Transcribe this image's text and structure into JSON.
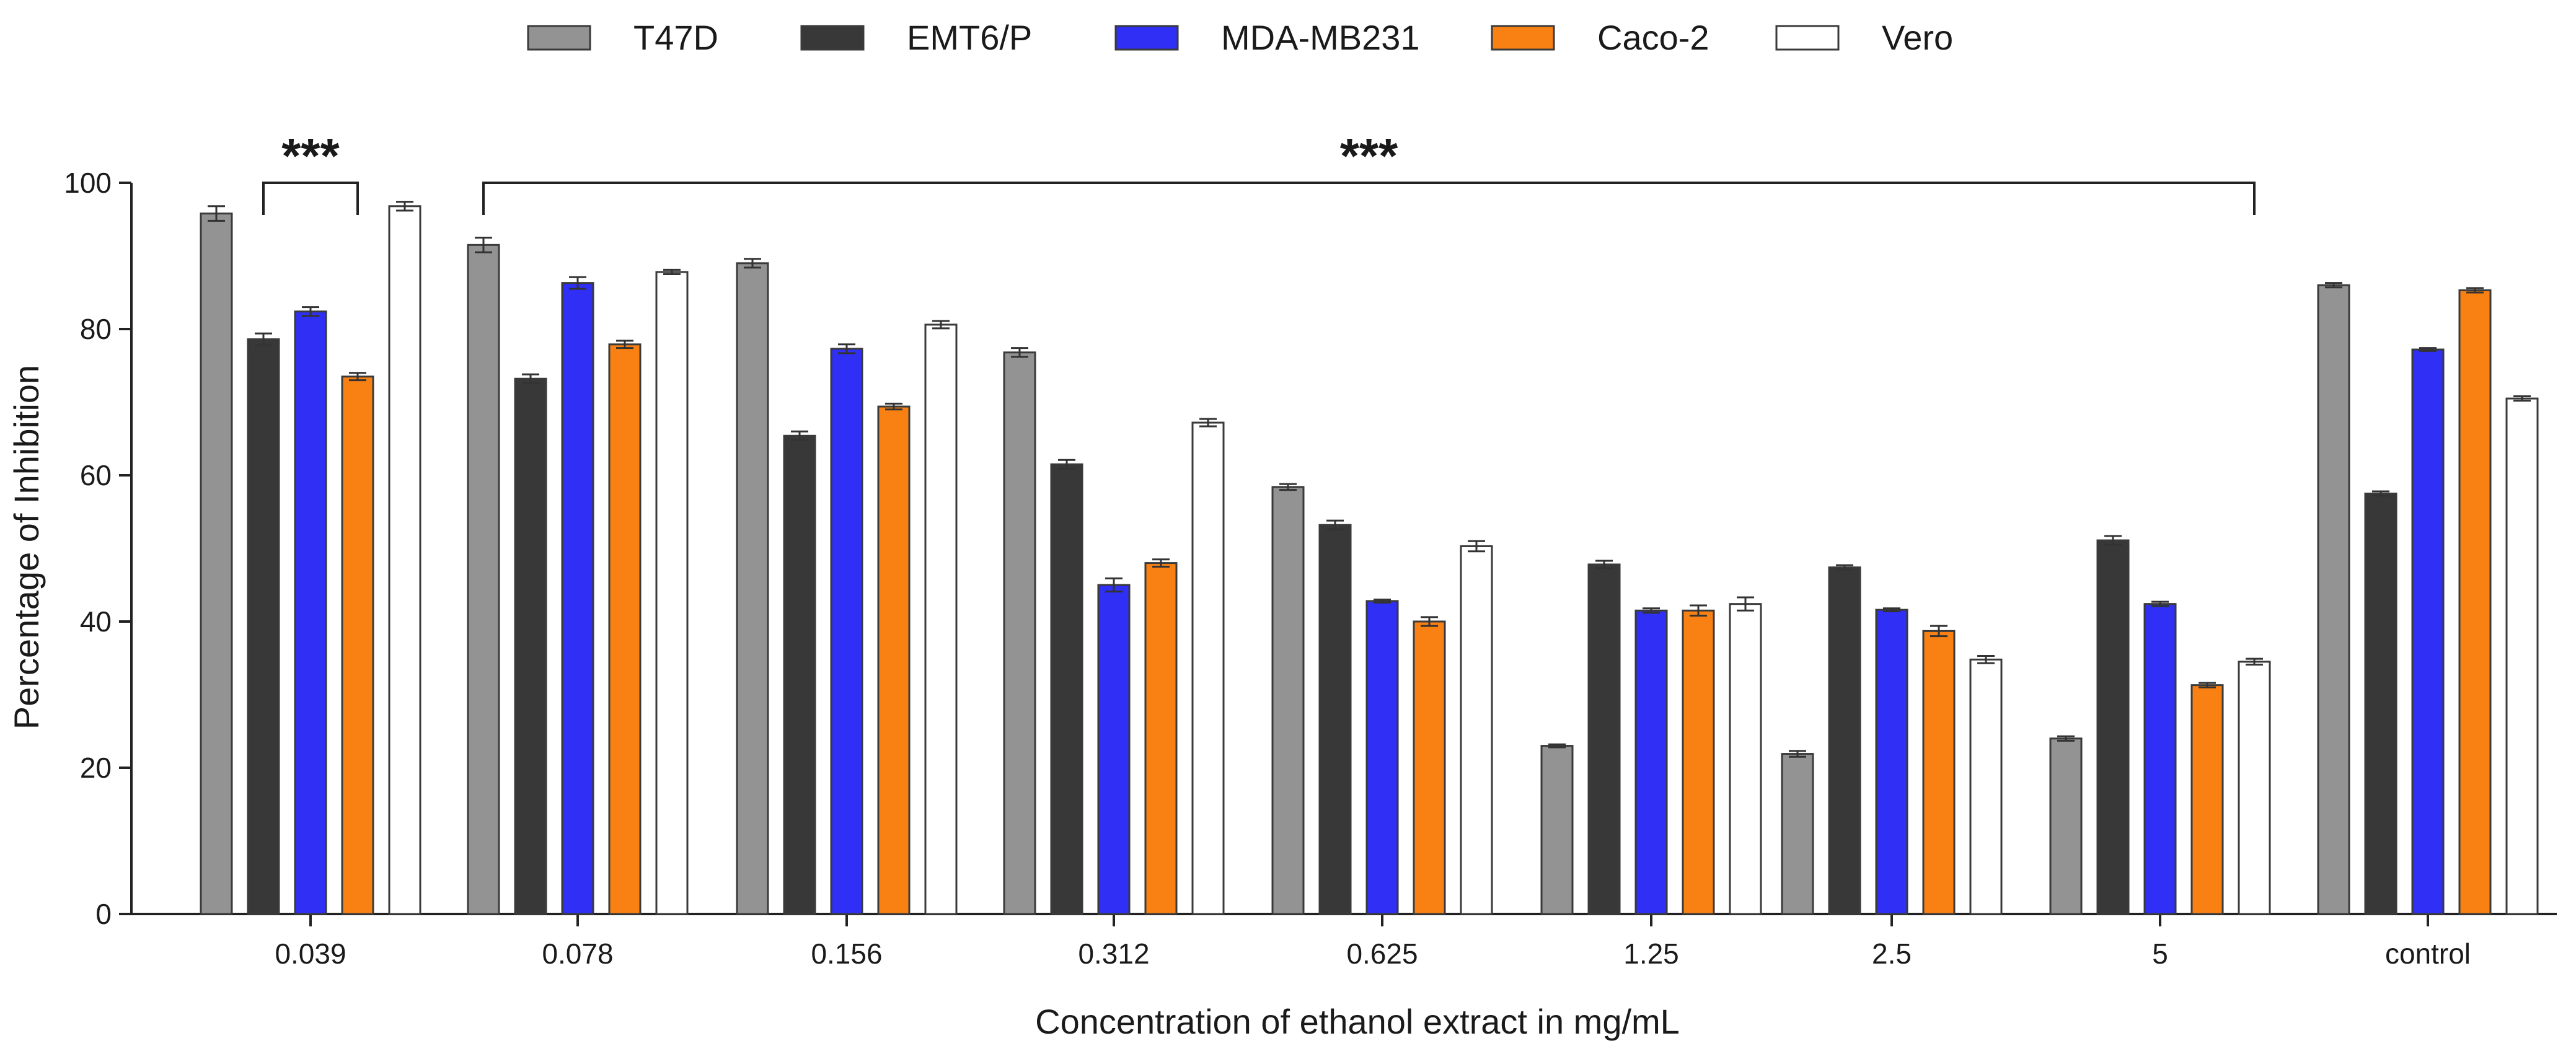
{
  "chart_data": {
    "type": "bar",
    "title": "",
    "xlabel": "Concentration of ethanol extract in mg/mL",
    "ylabel": "Percentage of Inhibition",
    "ylim": [
      0,
      100
    ],
    "yticks": [
      0,
      20,
      40,
      60,
      80,
      100
    ],
    "yticklabels": [
      "0",
      "20",
      "40",
      "60",
      "80",
      "100"
    ],
    "grid": false,
    "legend_position": "top",
    "categories": [
      "0.039",
      "0.078",
      "0.156",
      "0.312",
      "0.625",
      "1.25",
      "2.5",
      "5",
      "control"
    ],
    "series": [
      {
        "name": "T47D",
        "color": "#939393",
        "values": [
          95.8,
          91.5,
          89.0,
          76.8,
          58.4,
          23.0,
          21.9,
          24.0,
          86.0
        ],
        "errors": [
          1.0,
          1.0,
          0.6,
          0.6,
          0.4,
          0.2,
          0.4,
          0.3,
          0.3
        ]
      },
      {
        "name": "EMT6/P",
        "color": "#383838",
        "values": [
          78.6,
          73.2,
          65.4,
          61.5,
          53.2,
          47.8,
          47.4,
          51.1,
          57.5
        ],
        "errors": [
          0.8,
          0.6,
          0.6,
          0.6,
          0.6,
          0.5,
          0.3,
          0.6,
          0.3
        ]
      },
      {
        "name": "MDA-MB231",
        "color": "#2f2ff5",
        "values": [
          82.4,
          86.3,
          77.3,
          45.0,
          42.8,
          41.5,
          41.6,
          42.4,
          77.2
        ],
        "errors": [
          0.6,
          0.8,
          0.6,
          0.9,
          0.2,
          0.3,
          0.2,
          0.3,
          0.2
        ]
      },
      {
        "name": "Caco-2",
        "color": "#f98114",
        "values": [
          73.5,
          77.9,
          69.4,
          48.0,
          40.0,
          41.5,
          38.7,
          31.3,
          85.3
        ],
        "errors": [
          0.5,
          0.5,
          0.4,
          0.5,
          0.6,
          0.7,
          0.7,
          0.3,
          0.3
        ]
      },
      {
        "name": "Vero",
        "color": "#ffffff",
        "values": [
          96.8,
          87.8,
          80.6,
          67.2,
          50.3,
          42.4,
          34.8,
          34.5,
          70.5
        ],
        "errors": [
          0.6,
          0.3,
          0.5,
          0.5,
          0.7,
          0.9,
          0.5,
          0.4,
          0.3
        ]
      }
    ],
    "annotations": [
      {
        "label": "***",
        "from_category": "0.039",
        "from_series": "EMT6/P",
        "to_category": "0.039",
        "to_series": "Caco-2",
        "bracket_y": 100
      },
      {
        "label": "***",
        "from_category": "0.078",
        "from_series": "T47D",
        "to_category": "5",
        "to_series": "Vero",
        "bracket_y": 100
      }
    ]
  }
}
